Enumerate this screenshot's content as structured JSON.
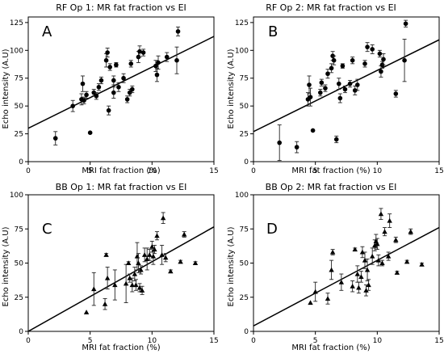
{
  "chart_data": [
    {
      "type": "scatter",
      "panel_letter": "A",
      "title": "RF Op 1: MR fat fraction vs EI",
      "xlabel": "MRI fat fraction (%)",
      "ylabel": "Echo intensity (A.U)",
      "xlim": [
        0,
        15
      ],
      "ylim": [
        0,
        130
      ],
      "xticks": [
        "0",
        "5",
        "10",
        "15"
      ],
      "yticks": [
        "0",
        "25",
        "50",
        "75",
        "100",
        "125"
      ],
      "marker": "circle",
      "regression": {
        "intercept": 30,
        "slope": 5.5
      },
      "points": [
        {
          "x": 2.2,
          "y": 21,
          "err": 6
        },
        {
          "x": 3.6,
          "y": 50,
          "err": 5
        },
        {
          "x": 4.3,
          "y": 56,
          "err": 5
        },
        {
          "x": 4.4,
          "y": 70,
          "err": 7
        },
        {
          "x": 4.5,
          "y": 55,
          "err": 3
        },
        {
          "x": 4.7,
          "y": 60,
          "err": 3
        },
        {
          "x": 5.0,
          "y": 26,
          "err": 0
        },
        {
          "x": 5.3,
          "y": 62,
          "err": 3
        },
        {
          "x": 5.5,
          "y": 59,
          "err": 3
        },
        {
          "x": 5.7,
          "y": 67,
          "err": 3
        },
        {
          "x": 5.9,
          "y": 73,
          "err": 3
        },
        {
          "x": 6.3,
          "y": 91,
          "err": 6
        },
        {
          "x": 6.4,
          "y": 98,
          "err": 4
        },
        {
          "x": 6.5,
          "y": 46,
          "err": 4
        },
        {
          "x": 6.6,
          "y": 85,
          "err": 3
        },
        {
          "x": 6.9,
          "y": 73,
          "err": 4
        },
        {
          "x": 6.9,
          "y": 62,
          "err": 5
        },
        {
          "x": 7.1,
          "y": 87,
          "err": 2
        },
        {
          "x": 7.3,
          "y": 67,
          "err": 4
        },
        {
          "x": 7.7,
          "y": 75,
          "err": 4
        },
        {
          "x": 8.0,
          "y": 56,
          "err": 3
        },
        {
          "x": 8.2,
          "y": 62,
          "err": 3
        },
        {
          "x": 8.3,
          "y": 88,
          "err": 3
        },
        {
          "x": 8.4,
          "y": 65,
          "err": 3
        },
        {
          "x": 8.9,
          "y": 94,
          "err": 5
        },
        {
          "x": 9.0,
          "y": 99,
          "err": 5
        },
        {
          "x": 9.3,
          "y": 98,
          "err": 3
        },
        {
          "x": 10.3,
          "y": 86,
          "err": 5
        },
        {
          "x": 10.4,
          "y": 78,
          "err": 6
        },
        {
          "x": 10.5,
          "y": 89,
          "err": 6
        },
        {
          "x": 11.2,
          "y": 94,
          "err": 4
        },
        {
          "x": 12.0,
          "y": 91,
          "err": 12
        },
        {
          "x": 12.1,
          "y": 117,
          "err": 4
        }
      ]
    },
    {
      "type": "scatter",
      "panel_letter": "B",
      "title": "RF Op 2: MR fat fraction vs EI",
      "xlabel": "MRI fat fraction (%)",
      "ylabel": "Echo intensity (A.U)",
      "xlim": [
        0,
        15
      ],
      "ylim": [
        0,
        130
      ],
      "xticks": [
        "0",
        "5",
        "10",
        "15"
      ],
      "yticks": [
        "0",
        "25",
        "50",
        "75",
        "100",
        "125"
      ],
      "marker": "circle",
      "regression": {
        "intercept": 27,
        "slope": 5.5
      },
      "points": [
        {
          "x": 2.1,
          "y": 17,
          "err": 16
        },
        {
          "x": 3.5,
          "y": 13,
          "err": 5
        },
        {
          "x": 4.4,
          "y": 56,
          "err": 6
        },
        {
          "x": 4.5,
          "y": 69,
          "err": 8
        },
        {
          "x": 4.6,
          "y": 58,
          "err": 8
        },
        {
          "x": 4.8,
          "y": 28,
          "err": 0
        },
        {
          "x": 5.4,
          "y": 62,
          "err": 3
        },
        {
          "x": 5.5,
          "y": 71,
          "err": 3
        },
        {
          "x": 5.8,
          "y": 66,
          "err": 3
        },
        {
          "x": 6.0,
          "y": 79,
          "err": 4
        },
        {
          "x": 6.3,
          "y": 84,
          "err": 4
        },
        {
          "x": 6.4,
          "y": 95,
          "err": 4
        },
        {
          "x": 6.5,
          "y": 91,
          "err": 4
        },
        {
          "x": 6.7,
          "y": 20,
          "err": 3
        },
        {
          "x": 6.9,
          "y": 70,
          "err": 5
        },
        {
          "x": 7.0,
          "y": 57,
          "err": 4
        },
        {
          "x": 7.2,
          "y": 86,
          "err": 2
        },
        {
          "x": 7.4,
          "y": 65,
          "err": 3
        },
        {
          "x": 7.8,
          "y": 70,
          "err": 3
        },
        {
          "x": 8.0,
          "y": 91,
          "err": 3
        },
        {
          "x": 8.2,
          "y": 64,
          "err": 4
        },
        {
          "x": 8.4,
          "y": 69,
          "err": 5
        },
        {
          "x": 9.0,
          "y": 88,
          "err": 3
        },
        {
          "x": 9.2,
          "y": 103,
          "err": 4
        },
        {
          "x": 9.6,
          "y": 101,
          "err": 4
        },
        {
          "x": 10.2,
          "y": 97,
          "err": 3
        },
        {
          "x": 10.3,
          "y": 81,
          "err": 5
        },
        {
          "x": 10.4,
          "y": 87,
          "err": 3
        },
        {
          "x": 10.5,
          "y": 92,
          "err": 5
        },
        {
          "x": 11.5,
          "y": 61,
          "err": 3
        },
        {
          "x": 12.2,
          "y": 91,
          "err": 19
        },
        {
          "x": 12.3,
          "y": 124,
          "err": 3
        }
      ]
    },
    {
      "type": "scatter",
      "panel_letter": "C",
      "title": "BB Op 1: MR fat fraction vs EI",
      "xlabel": "MRI fat fraction (%)",
      "ylabel": "Echo intensity (A.U)",
      "xlim": [
        0,
        15
      ],
      "ylim": [
        0,
        100
      ],
      "xticks": [
        "0",
        "5",
        "10",
        "15"
      ],
      "yticks": [
        "0",
        "25",
        "50",
        "75",
        "100"
      ],
      "marker": "triangle",
      "regression": {
        "intercept": 0,
        "slope": 5.1
      },
      "points": [
        {
          "x": 4.7,
          "y": 14,
          "err": 0
        },
        {
          "x": 5.3,
          "y": 31,
          "err": 12
        },
        {
          "x": 6.2,
          "y": 20,
          "err": 4
        },
        {
          "x": 6.3,
          "y": 56,
          "err": 1
        },
        {
          "x": 6.4,
          "y": 39,
          "err": 8
        },
        {
          "x": 7.0,
          "y": 34,
          "err": 11
        },
        {
          "x": 7.9,
          "y": 35,
          "err": 14
        },
        {
          "x": 8.1,
          "y": 50,
          "err": 1
        },
        {
          "x": 8.2,
          "y": 39,
          "err": 3
        },
        {
          "x": 8.4,
          "y": 34,
          "err": 5
        },
        {
          "x": 8.6,
          "y": 42,
          "err": 5
        },
        {
          "x": 8.7,
          "y": 34,
          "err": 4
        },
        {
          "x": 8.8,
          "y": 55,
          "err": 10
        },
        {
          "x": 8.9,
          "y": 50,
          "err": 7
        },
        {
          "x": 9.0,
          "y": 32,
          "err": 3
        },
        {
          "x": 9.1,
          "y": 45,
          "err": 3
        },
        {
          "x": 9.2,
          "y": 30,
          "err": 3
        },
        {
          "x": 9.4,
          "y": 56,
          "err": 5
        },
        {
          "x": 9.6,
          "y": 53,
          "err": 8
        },
        {
          "x": 9.8,
          "y": 56,
          "err": 4
        },
        {
          "x": 10.0,
          "y": 62,
          "err": 4
        },
        {
          "x": 10.1,
          "y": 55,
          "err": 6
        },
        {
          "x": 10.2,
          "y": 60,
          "err": 3
        },
        {
          "x": 10.4,
          "y": 70,
          "err": 3
        },
        {
          "x": 10.8,
          "y": 56,
          "err": 7
        },
        {
          "x": 10.9,
          "y": 83,
          "err": 4
        },
        {
          "x": 11.1,
          "y": 54,
          "err": 3
        },
        {
          "x": 11.5,
          "y": 44,
          "err": 1
        },
        {
          "x": 12.3,
          "y": 51,
          "err": 1
        },
        {
          "x": 12.6,
          "y": 71,
          "err": 2
        },
        {
          "x": 13.5,
          "y": 50,
          "err": 1
        }
      ]
    },
    {
      "type": "scatter",
      "panel_letter": "D",
      "title": "BB Op 2: MR fat fraction vs EI",
      "xlabel": "MRI fat fraction (%)",
      "ylabel": "Echo intensity (A.U)",
      "xlim": [
        0,
        15
      ],
      "ylim": [
        0,
        100
      ],
      "xticks": [
        "0",
        "5",
        "10",
        "15"
      ],
      "yticks": [
        "0",
        "25",
        "50",
        "75",
        "100"
      ],
      "marker": "triangle",
      "regression": {
        "intercept": 4,
        "slope": 4.8
      },
      "points": [
        {
          "x": 4.6,
          "y": 21,
          "err": 0
        },
        {
          "x": 5.0,
          "y": 29,
          "err": 7
        },
        {
          "x": 6.0,
          "y": 24,
          "err": 4
        },
        {
          "x": 6.3,
          "y": 45,
          "err": 7
        },
        {
          "x": 6.4,
          "y": 58,
          "err": 2
        },
        {
          "x": 7.1,
          "y": 36,
          "err": 6
        },
        {
          "x": 8.0,
          "y": 33,
          "err": 4
        },
        {
          "x": 8.2,
          "y": 60,
          "err": 1
        },
        {
          "x": 8.4,
          "y": 42,
          "err": 6
        },
        {
          "x": 8.5,
          "y": 32,
          "err": 4
        },
        {
          "x": 8.7,
          "y": 40,
          "err": 4
        },
        {
          "x": 8.8,
          "y": 58,
          "err": 4
        },
        {
          "x": 9.0,
          "y": 52,
          "err": 6
        },
        {
          "x": 9.1,
          "y": 30,
          "err": 4
        },
        {
          "x": 9.2,
          "y": 45,
          "err": 8
        },
        {
          "x": 9.3,
          "y": 34,
          "err": 4
        },
        {
          "x": 9.6,
          "y": 55,
          "err": 6
        },
        {
          "x": 9.8,
          "y": 63,
          "err": 4
        },
        {
          "x": 9.9,
          "y": 66,
          "err": 5
        },
        {
          "x": 10.0,
          "y": 64,
          "err": 4
        },
        {
          "x": 10.1,
          "y": 52,
          "err": 4
        },
        {
          "x": 10.3,
          "y": 86,
          "err": 4
        },
        {
          "x": 10.4,
          "y": 50,
          "err": 2
        },
        {
          "x": 10.6,
          "y": 73,
          "err": 3
        },
        {
          "x": 10.9,
          "y": 55,
          "err": 3
        },
        {
          "x": 11.0,
          "y": 81,
          "err": 5
        },
        {
          "x": 11.5,
          "y": 67,
          "err": 2
        },
        {
          "x": 11.6,
          "y": 43,
          "err": 1
        },
        {
          "x": 12.4,
          "y": 51,
          "err": 1
        },
        {
          "x": 12.7,
          "y": 73,
          "err": 2
        },
        {
          "x": 13.6,
          "y": 49,
          "err": 1
        }
      ]
    }
  ]
}
